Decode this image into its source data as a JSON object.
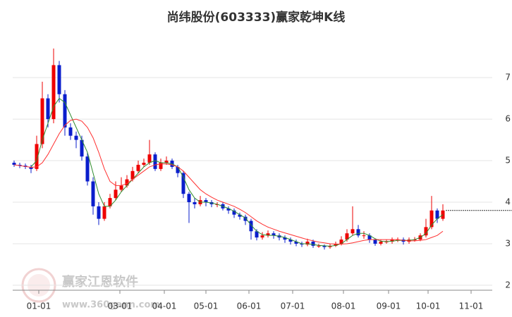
{
  "chart_data": {
    "type": "candlestick",
    "title": "尚纬股份(603333)赢家乾坤K线",
    "watermark": {
      "name": "赢家江恩软件",
      "url": "www.360gann.com"
    },
    "x": [
      1,
      5,
      9,
      13,
      17,
      21,
      25,
      29,
      33,
      37,
      41,
      45,
      49,
      53,
      57,
      61,
      65,
      69,
      73,
      77,
      81,
      85,
      89,
      93,
      97,
      101,
      105,
      109,
      113,
      117,
      121,
      125,
      129,
      133,
      137,
      141,
      145,
      149,
      153,
      157,
      161,
      165,
      169,
      173,
      177,
      181,
      185,
      189,
      193,
      197,
      201,
      205,
      209,
      213,
      217,
      221,
      225,
      229,
      233,
      237,
      241,
      245,
      249,
      253,
      257,
      261,
      265,
      269,
      273,
      277,
      281,
      285,
      289,
      293,
      297,
      301,
      305
    ],
    "open": [
      4.95,
      4.9,
      4.88,
      4.85,
      4.8,
      5.4,
      6.5,
      6.0,
      7.3,
      6.6,
      5.8,
      5.6,
      5.5,
      5.1,
      4.5,
      3.9,
      3.6,
      3.9,
      4.1,
      4.3,
      4.4,
      4.55,
      4.75,
      4.9,
      4.95,
      5.15,
      4.8,
      4.95,
      5.0,
      4.85,
      4.7,
      4.2,
      4.0,
      3.95,
      4.05,
      4.0,
      3.95,
      3.95,
      3.85,
      3.8,
      3.7,
      3.65,
      3.55,
      3.3,
      3.15,
      3.2,
      3.25,
      3.2,
      3.15,
      3.1,
      3.05,
      3.0,
      2.98,
      3.05,
      2.95,
      2.95,
      2.92,
      2.95,
      3.0,
      3.1,
      3.25,
      3.35,
      3.2,
      3.2,
      3.1,
      3.0,
      3.05,
      3.05,
      3.1,
      3.1,
      3.05,
      3.1,
      3.1,
      3.2,
      3.4,
      3.8,
      3.6
    ],
    "high": [
      5.0,
      4.95,
      4.93,
      4.9,
      5.6,
      6.9,
      6.6,
      7.7,
      7.4,
      6.7,
      5.9,
      5.7,
      5.6,
      5.2,
      4.6,
      4.0,
      4.0,
      4.2,
      4.5,
      4.6,
      4.65,
      4.85,
      5.0,
      5.05,
      5.5,
      5.2,
      5.05,
      5.1,
      5.05,
      4.9,
      4.75,
      4.25,
      4.1,
      4.15,
      4.1,
      4.05,
      4.0,
      4.0,
      3.9,
      3.85,
      3.75,
      3.7,
      3.6,
      3.35,
      3.28,
      3.32,
      3.3,
      3.25,
      3.2,
      3.15,
      3.1,
      3.05,
      3.12,
      3.1,
      3.0,
      2.98,
      3.0,
      3.05,
      3.18,
      3.35,
      3.9,
      3.45,
      3.3,
      3.25,
      3.12,
      3.1,
      3.1,
      3.15,
      3.15,
      3.15,
      3.15,
      3.16,
      3.25,
      3.6,
      4.15,
      3.85,
      3.95
    ],
    "low": [
      4.85,
      4.82,
      4.8,
      4.7,
      4.75,
      5.3,
      5.8,
      5.9,
      6.4,
      5.6,
      5.5,
      5.3,
      5.0,
      4.4,
      3.7,
      3.45,
      3.55,
      3.85,
      4.05,
      4.25,
      4.35,
      4.5,
      4.7,
      4.85,
      4.9,
      4.75,
      4.75,
      4.9,
      4.8,
      4.6,
      4.1,
      3.5,
      3.85,
      3.9,
      3.9,
      3.88,
      3.88,
      3.8,
      3.72,
      3.62,
      3.58,
      3.45,
      3.1,
      3.08,
      3.1,
      3.15,
      3.12,
      3.08,
      3.02,
      2.98,
      2.94,
      2.92,
      2.94,
      2.9,
      2.9,
      2.86,
      2.88,
      2.92,
      2.96,
      3.05,
      3.2,
      3.15,
      3.12,
      3.02,
      2.95,
      2.96,
      3.0,
      3.0,
      3.04,
      2.98,
      3.0,
      3.05,
      3.06,
      3.15,
      3.35,
      3.5,
      3.55
    ],
    "close": [
      4.9,
      4.88,
      4.85,
      4.8,
      5.4,
      6.5,
      6.0,
      7.3,
      6.6,
      5.8,
      5.6,
      5.5,
      5.1,
      4.5,
      3.9,
      3.6,
      3.9,
      4.1,
      4.3,
      4.4,
      4.55,
      4.75,
      4.9,
      4.95,
      5.15,
      4.8,
      4.95,
      5.0,
      4.85,
      4.7,
      4.2,
      4.0,
      3.95,
      4.05,
      4.0,
      3.95,
      3.95,
      3.85,
      3.8,
      3.7,
      3.65,
      3.55,
      3.3,
      3.15,
      3.2,
      3.25,
      3.2,
      3.15,
      3.1,
      3.05,
      3.0,
      2.98,
      3.05,
      2.95,
      2.95,
      2.92,
      2.95,
      3.0,
      3.1,
      3.25,
      3.35,
      3.2,
      3.2,
      3.1,
      3.0,
      3.05,
      3.05,
      3.1,
      3.1,
      3.05,
      3.1,
      3.1,
      3.2,
      3.4,
      3.8,
      3.6,
      3.8
    ],
    "up_color": "#ee0000",
    "down_color": "#0a1ecc",
    "ma_lines": [
      {
        "color": "#2e8b2e",
        "values": [
          null,
          null,
          null,
          4.85,
          5.0,
          5.5,
          5.9,
          6.3,
          6.5,
          6.4,
          6.1,
          5.8,
          5.5,
          5.2,
          4.7,
          4.2,
          3.9,
          3.9,
          4.05,
          4.25,
          4.4,
          4.55,
          4.7,
          4.85,
          4.95,
          5.0,
          4.95,
          4.95,
          4.92,
          4.85,
          4.6,
          4.3,
          4.1,
          4.0,
          4.0,
          3.98,
          3.95,
          3.9,
          3.85,
          3.78,
          3.7,
          3.62,
          3.45,
          3.3,
          3.22,
          3.2,
          3.2,
          3.18,
          3.15,
          3.1,
          3.05,
          3.0,
          3.0,
          2.98,
          2.96,
          2.95,
          2.94,
          2.96,
          3.0,
          3.1,
          3.2,
          3.25,
          3.25,
          3.2,
          3.12,
          3.06,
          3.05,
          3.06,
          3.08,
          3.08,
          3.08,
          3.1,
          3.15,
          3.25,
          3.45,
          3.6,
          3.7
        ]
      },
      {
        "color": "#ff3030",
        "values": [
          4.9,
          4.88,
          4.86,
          4.84,
          4.85,
          4.95,
          5.15,
          5.4,
          5.65,
          5.85,
          5.97,
          6.0,
          5.95,
          5.8,
          5.55,
          5.2,
          4.8,
          4.5,
          4.4,
          4.4,
          4.45,
          4.55,
          4.65,
          4.75,
          4.85,
          4.9,
          4.92,
          4.92,
          4.9,
          4.85,
          4.75,
          4.6,
          4.45,
          4.3,
          4.2,
          4.12,
          4.05,
          4.0,
          3.95,
          3.9,
          3.83,
          3.75,
          3.65,
          3.55,
          3.47,
          3.4,
          3.35,
          3.3,
          3.26,
          3.22,
          3.18,
          3.14,
          3.1,
          3.07,
          3.04,
          3.02,
          3.0,
          2.99,
          2.99,
          3.0,
          3.02,
          3.05,
          3.08,
          3.1,
          3.1,
          3.1,
          3.1,
          3.1,
          3.1,
          3.08,
          3.07,
          3.07,
          3.08,
          3.1,
          3.15,
          3.2,
          3.3
        ]
      }
    ],
    "xlim": [
      0,
      340
    ],
    "xticks": [
      {
        "value": 18.5,
        "label": "01-01"
      },
      {
        "value": 76,
        "label": "03-01"
      },
      {
        "value": 107.5,
        "label": "04-01"
      },
      {
        "value": 137,
        "label": "05-01"
      },
      {
        "value": 167.5,
        "label": "06-01"
      },
      {
        "value": 198.5,
        "label": "07-01"
      },
      {
        "value": 234.5,
        "label": "08-01"
      },
      {
        "value": 266.5,
        "label": "09-01"
      },
      {
        "value": 294.5,
        "label": "10-01"
      },
      {
        "value": 325,
        "label": "11-01"
      }
    ],
    "ylim": [
      1.88,
      8.02
    ],
    "yticks": [
      2,
      3,
      4,
      5,
      6,
      7
    ],
    "grid": true
  }
}
